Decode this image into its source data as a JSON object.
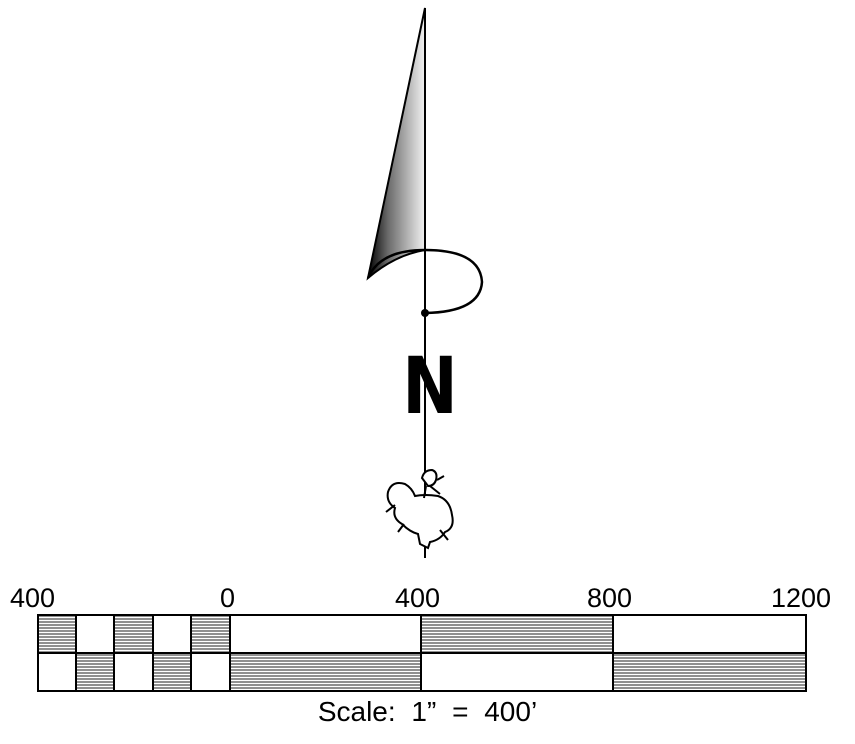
{
  "north_arrow": {
    "letter": "N",
    "icon": "north-arrow-icon",
    "emblem_icon": "bucking-horse-rider-icon"
  },
  "scale_bar": {
    "tick_labels": [
      "400",
      "0",
      "400",
      "800",
      "1200"
    ],
    "caption": "Scale:  1”  =  400’"
  }
}
